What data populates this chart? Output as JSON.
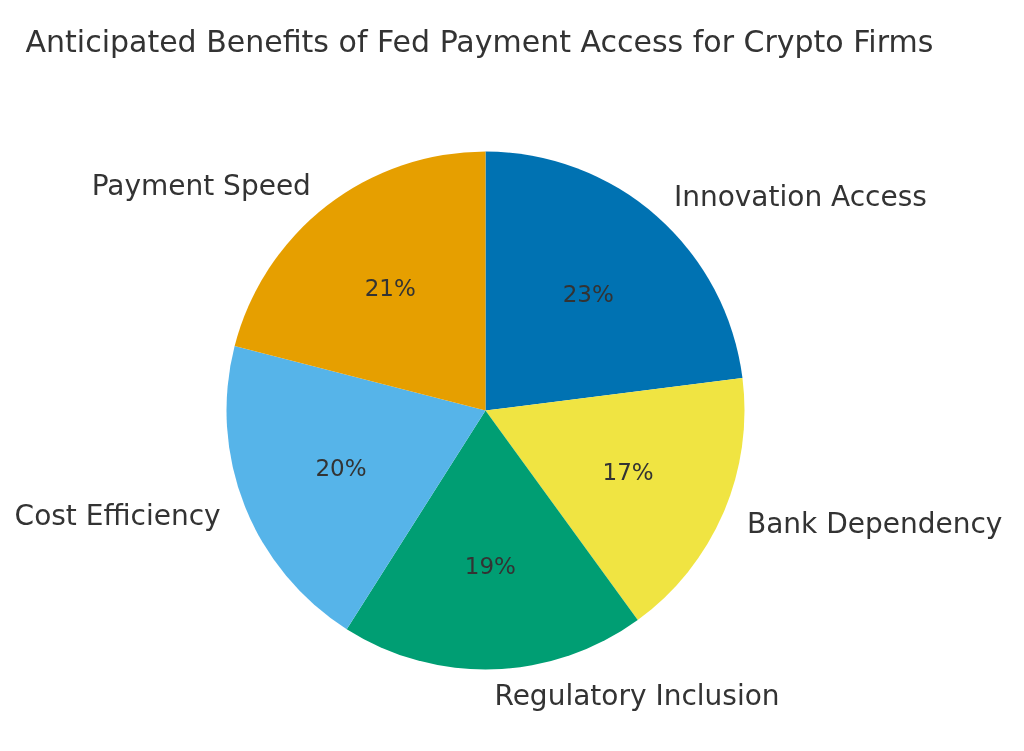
{
  "chart_data": {
    "type": "pie",
    "title": "Anticipated Benefits of Fed Payment Access for Crypto Firms",
    "categories": [
      "Innovation Access",
      "Bank Dependency",
      "Regulatory Inclusion",
      "Cost Efficiency",
      "Payment Speed"
    ],
    "values": [
      23,
      17,
      19,
      20,
      21
    ],
    "colors": [
      "#0072b2",
      "#f0e442",
      "#009e73",
      "#56b4e9",
      "#e69f00"
    ],
    "value_labels": [
      "23%",
      "17%",
      "19%",
      "20%",
      "21%"
    ]
  }
}
